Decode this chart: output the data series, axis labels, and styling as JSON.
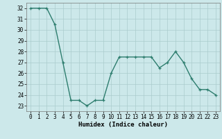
{
  "x": [
    0,
    1,
    2,
    3,
    4,
    5,
    6,
    7,
    8,
    9,
    10,
    11,
    12,
    13,
    14,
    15,
    16,
    17,
    18,
    19,
    20,
    21,
    22,
    23
  ],
  "y": [
    32,
    32,
    32,
    30.5,
    27,
    23.5,
    23.5,
    23,
    23.5,
    23.5,
    26,
    27.5,
    27.5,
    27.5,
    27.5,
    27.5,
    26.5,
    27,
    28,
    27,
    25.5,
    24.5,
    24.5,
    24
  ],
  "line_color": "#2d7d6e",
  "marker": "+",
  "bg_color": "#cce8ea",
  "grid_color": "#aacccc",
  "xlabel": "Humidex (Indice chaleur)",
  "ylim": [
    22.5,
    32.5
  ],
  "xlim": [
    -0.5,
    23.5
  ],
  "yticks": [
    23,
    24,
    25,
    26,
    27,
    28,
    29,
    30,
    31,
    32
  ],
  "xticks": [
    0,
    1,
    2,
    3,
    4,
    5,
    6,
    7,
    8,
    9,
    10,
    11,
    12,
    13,
    14,
    15,
    16,
    17,
    18,
    19,
    20,
    21,
    22,
    23
  ],
  "label_fontsize": 6.5,
  "tick_fontsize": 5.5,
  "linewidth": 1.0,
  "markersize": 3.5
}
